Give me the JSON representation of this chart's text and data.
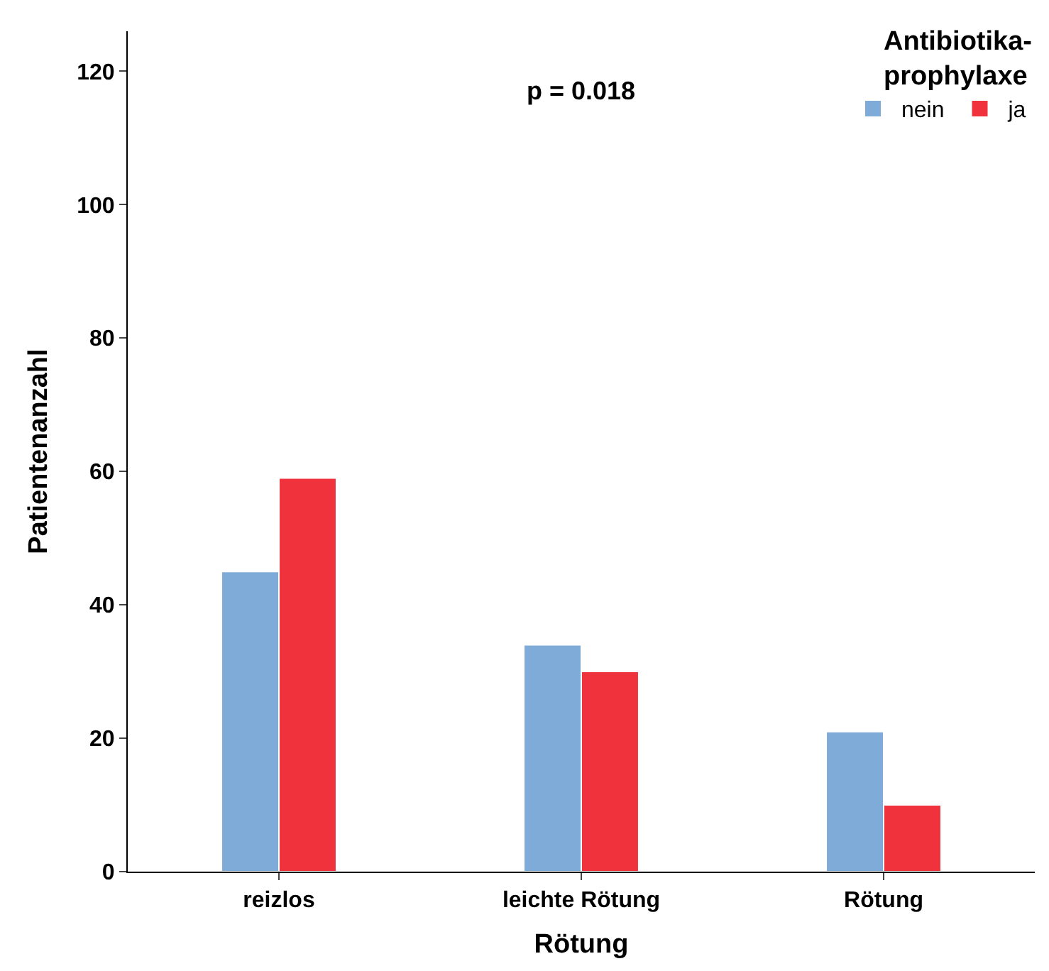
{
  "chart_data": {
    "type": "bar",
    "xlabel": "Rötung",
    "ylabel": "Patientenanzahl",
    "legend_title": "Antibiotika-prophylaxe",
    "categories": [
      "reizlos",
      "leichte Rötung",
      "Rötung"
    ],
    "series": [
      {
        "name": "nein",
        "color": "#7eabd8",
        "values": [
          45,
          34,
          21
        ]
      },
      {
        "name": "ja",
        "color": "#ef323c",
        "values": [
          59,
          30,
          10
        ]
      }
    ],
    "ylim": [
      0,
      126
    ],
    "yticks": [
      0,
      20,
      40,
      60,
      80,
      100,
      120
    ],
    "annotations": [
      "p = 0.018"
    ],
    "legend": "top right"
  }
}
